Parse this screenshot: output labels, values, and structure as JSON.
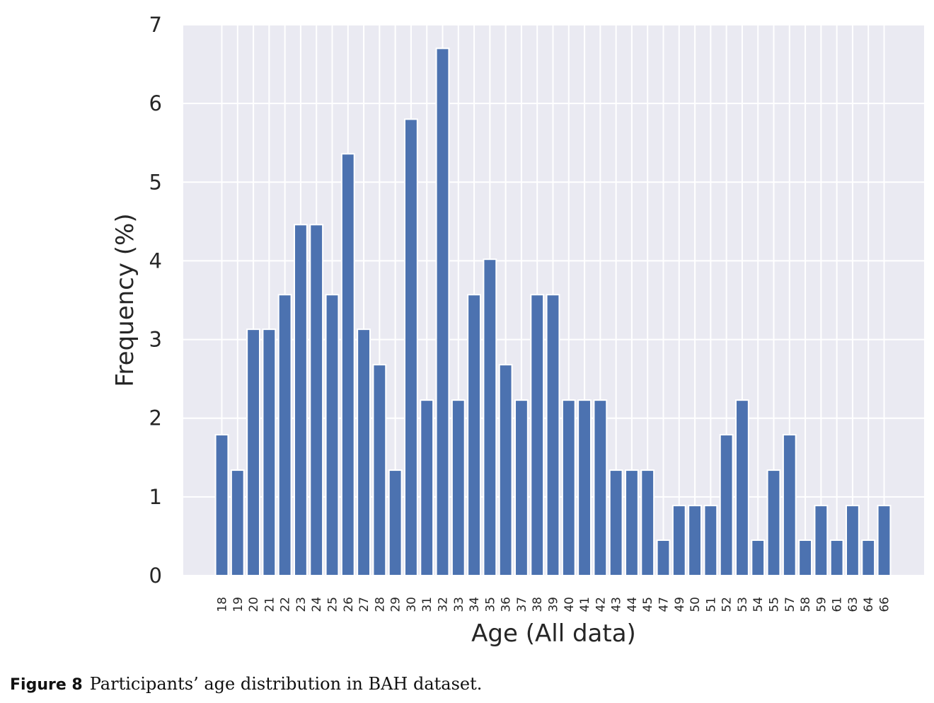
{
  "chart_data": {
    "type": "bar",
    "xlabel": "Age (All data)",
    "ylabel": "Frequency (%)",
    "ylim": [
      0,
      7
    ],
    "yticks": [
      "0",
      "1",
      "2",
      "3",
      "4",
      "5",
      "6",
      "7"
    ],
    "grid": true,
    "categories": [
      "18",
      "19",
      "20",
      "21",
      "22",
      "23",
      "24",
      "25",
      "26",
      "27",
      "28",
      "29",
      "30",
      "31",
      "32",
      "33",
      "34",
      "35",
      "36",
      "37",
      "38",
      "39",
      "40",
      "41",
      "42",
      "43",
      "44",
      "45",
      "47",
      "49",
      "50",
      "51",
      "52",
      "53",
      "54",
      "55",
      "57",
      "58",
      "59",
      "61",
      "63",
      "64",
      "66"
    ],
    "values": [
      1.79,
      1.34,
      3.13,
      3.13,
      3.57,
      4.46,
      4.46,
      3.57,
      5.36,
      3.13,
      2.68,
      1.34,
      5.8,
      2.23,
      6.7,
      2.23,
      3.57,
      4.02,
      2.68,
      2.23,
      3.57,
      3.57,
      2.23,
      2.23,
      2.23,
      1.34,
      1.34,
      1.34,
      0.45,
      0.89,
      0.89,
      0.89,
      1.79,
      2.23,
      0.45,
      1.34,
      1.79,
      0.45,
      0.89,
      0.45,
      0.89,
      0.45,
      0.89
    ],
    "colors": {
      "bar": "#4c72b0",
      "background": "#eaeaf2",
      "grid": "#ffffff",
      "text": "#262626"
    }
  },
  "caption": {
    "label": "Figure 8",
    "text": "Participants’ age distribution in BAH dataset."
  }
}
